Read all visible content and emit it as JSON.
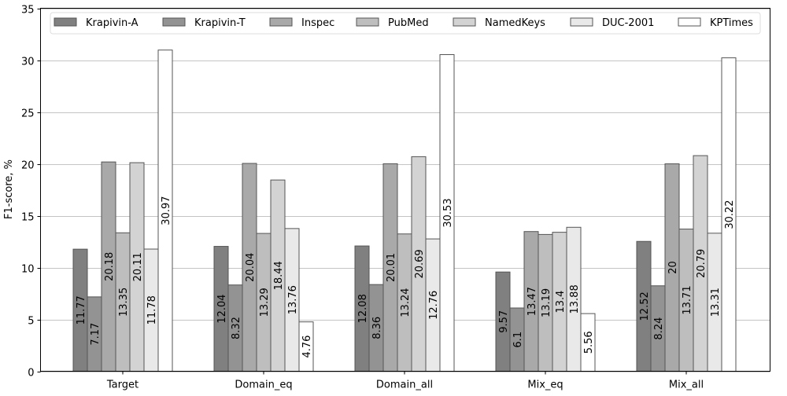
{
  "chart_data": {
    "type": "bar",
    "title": "",
    "xlabel": "",
    "ylabel": "F1-score, %",
    "ylim": [
      0,
      35
    ],
    "yticks": [
      0,
      5,
      10,
      15,
      20,
      25,
      30,
      35
    ],
    "grid": "horizontal",
    "legend_placement": "top",
    "categories": [
      "Target",
      "Domain_eq",
      "Domain_all",
      "Mix_eq",
      "Mix_all"
    ],
    "series": [
      {
        "name": "Krapivin-A",
        "color": "#808080",
        "values": [
          11.77,
          12.04,
          12.08,
          9.57,
          12.52
        ]
      },
      {
        "name": "Krapivin-T",
        "color": "#939393",
        "values": [
          7.17,
          8.32,
          8.36,
          6.1,
          8.24
        ]
      },
      {
        "name": "Inspec",
        "color": "#a9a9a9",
        "values": [
          20.18,
          20.04,
          20.01,
          13.47,
          20
        ]
      },
      {
        "name": "PubMed",
        "color": "#bebebe",
        "values": [
          13.35,
          13.29,
          13.24,
          13.19,
          13.71
        ]
      },
      {
        "name": "NamedKeys",
        "color": "#d3d3d3",
        "values": [
          20.11,
          18.44,
          20.69,
          13.4,
          20.79
        ]
      },
      {
        "name": "DUC-2001",
        "color": "#e9e9e9",
        "values": [
          11.78,
          13.76,
          12.76,
          13.88,
          13.31
        ]
      },
      {
        "name": "KPTimes",
        "color": "#ffffff",
        "values": [
          30.97,
          4.76,
          30.53,
          5.56,
          30.22
        ]
      }
    ]
  }
}
